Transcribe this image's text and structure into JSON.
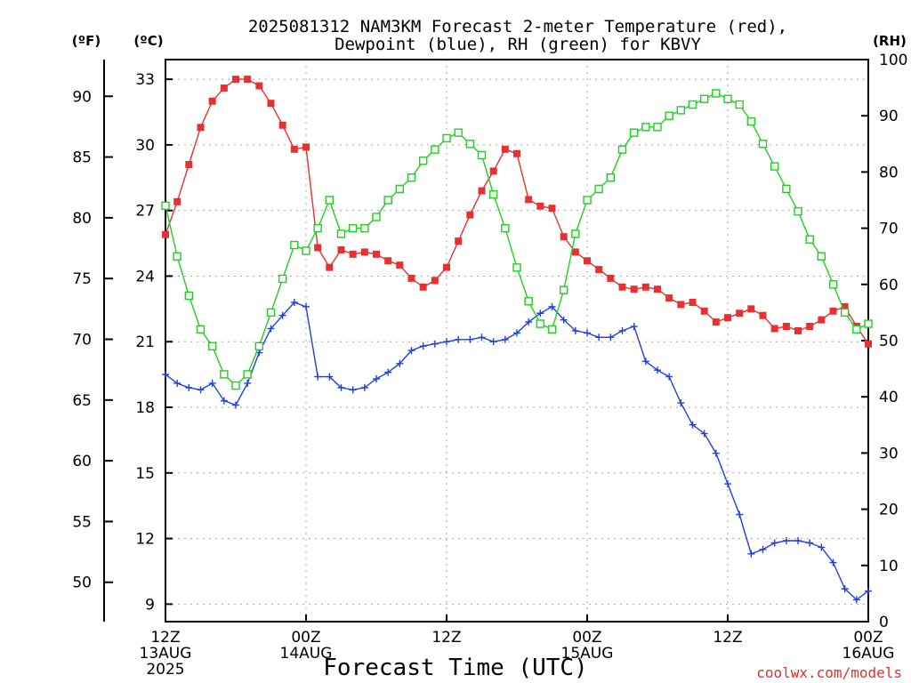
{
  "chart_data": {
    "type": "line",
    "title": [
      "2025081312 NAM3KM Forecast 2-meter Temperature (red),",
      "Dewpoint (blue), RH (green) for KBVY"
    ],
    "xlabel": "Forecast Time (UTC)",
    "credit": "coolwx.com/models",
    "units": {
      "fahrenheit": "(ºF)",
      "celsius": "(ºC)",
      "rh": "(RH)"
    },
    "x_hours": [
      0,
      1,
      2,
      3,
      4,
      5,
      6,
      7,
      8,
      9,
      10,
      11,
      12,
      13,
      14,
      15,
      16,
      17,
      18,
      19,
      20,
      21,
      22,
      23,
      24,
      25,
      26,
      27,
      28,
      29,
      30,
      31,
      32,
      33,
      34,
      35,
      36,
      37,
      38,
      39,
      40,
      41,
      42,
      43,
      44,
      45,
      46,
      47,
      48,
      49,
      50,
      51,
      52,
      53,
      54,
      55,
      56,
      57,
      58,
      59,
      60
    ],
    "xlim": [
      0,
      60
    ],
    "ylim_c": [
      8.2,
      33.9
    ],
    "ylim_rh": [
      0,
      100
    ],
    "x_ticks": [
      {
        "h": 0,
        "lines": [
          "12Z",
          "13AUG",
          "2025"
        ]
      },
      {
        "h": 12,
        "lines": [
          "00Z",
          "14AUG"
        ]
      },
      {
        "h": 24,
        "lines": [
          "12Z"
        ]
      },
      {
        "h": 36,
        "lines": [
          "00Z",
          "15AUG"
        ]
      },
      {
        "h": 48,
        "lines": [
          "12Z"
        ]
      },
      {
        "h": 60,
        "lines": [
          "00Z",
          "16AUG"
        ]
      }
    ],
    "y_ticks_c": [
      9,
      12,
      15,
      18,
      21,
      24,
      27,
      30,
      33
    ],
    "y_ticks_f": [
      50,
      55,
      60,
      65,
      70,
      75,
      80,
      85,
      90
    ],
    "y_ticks_rh": [
      0,
      10,
      20,
      30,
      40,
      50,
      60,
      70,
      80,
      90,
      100
    ],
    "grid": true,
    "series": [
      {
        "name": "Temperature",
        "color": "#e83030",
        "marker": "filled-square",
        "axis": "c",
        "values": [
          25.9,
          27.4,
          29.1,
          30.8,
          32.0,
          32.6,
          33.0,
          33.0,
          32.7,
          31.9,
          30.9,
          29.8,
          29.9,
          25.3,
          24.4,
          25.2,
          25.0,
          25.1,
          25.0,
          24.7,
          24.5,
          23.9,
          23.5,
          23.8,
          24.4,
          25.6,
          26.8,
          27.9,
          28.8,
          29.8,
          29.6,
          27.5,
          27.2,
          27.1,
          25.8,
          25.1,
          24.7,
          24.3,
          23.9,
          23.5,
          23.4,
          23.5,
          23.4,
          23.0,
          22.7,
          22.8,
          22.4,
          21.9,
          22.1,
          22.3,
          22.5,
          22.2,
          21.6,
          21.7,
          21.5,
          21.7,
          22.0,
          22.4,
          22.6,
          21.7,
          20.9
        ]
      },
      {
        "name": "Dewpoint",
        "color": "#2040e0",
        "marker": "plus",
        "axis": "c",
        "values": [
          19.5,
          19.1,
          18.9,
          18.8,
          19.1,
          18.3,
          18.1,
          19.1,
          20.5,
          21.6,
          22.2,
          22.8,
          22.6,
          19.4,
          19.4,
          18.9,
          18.8,
          18.9,
          19.3,
          19.6,
          20.0,
          20.6,
          20.8,
          20.9,
          21.0,
          21.1,
          21.1,
          21.2,
          21.0,
          21.1,
          21.4,
          21.9,
          22.3,
          22.6,
          22.0,
          21.5,
          21.4,
          21.2,
          21.2,
          21.5,
          21.7,
          20.1,
          19.7,
          19.4,
          18.2,
          17.2,
          16.8,
          15.9,
          14.5,
          13.1,
          11.3,
          11.5,
          11.8,
          11.9,
          11.9,
          11.8,
          11.6,
          10.9,
          9.7,
          9.2,
          9.6
        ]
      },
      {
        "name": "RH",
        "color": "#20d020",
        "marker": "open-square",
        "axis": "rh",
        "values": [
          74,
          65,
          58,
          52,
          49,
          44,
          42,
          44,
          49,
          55,
          61,
          67,
          66,
          70,
          75,
          69,
          70,
          70,
          72,
          75,
          77,
          79,
          82,
          84,
          86,
          87,
          85,
          83,
          76,
          70,
          63,
          57,
          53,
          52,
          59,
          69,
          75,
          77,
          79,
          84,
          87,
          88,
          88,
          90,
          91,
          92,
          93,
          94,
          93,
          92,
          89,
          85,
          81,
          77,
          73,
          68,
          65,
          60,
          55,
          52,
          53
        ]
      }
    ]
  }
}
